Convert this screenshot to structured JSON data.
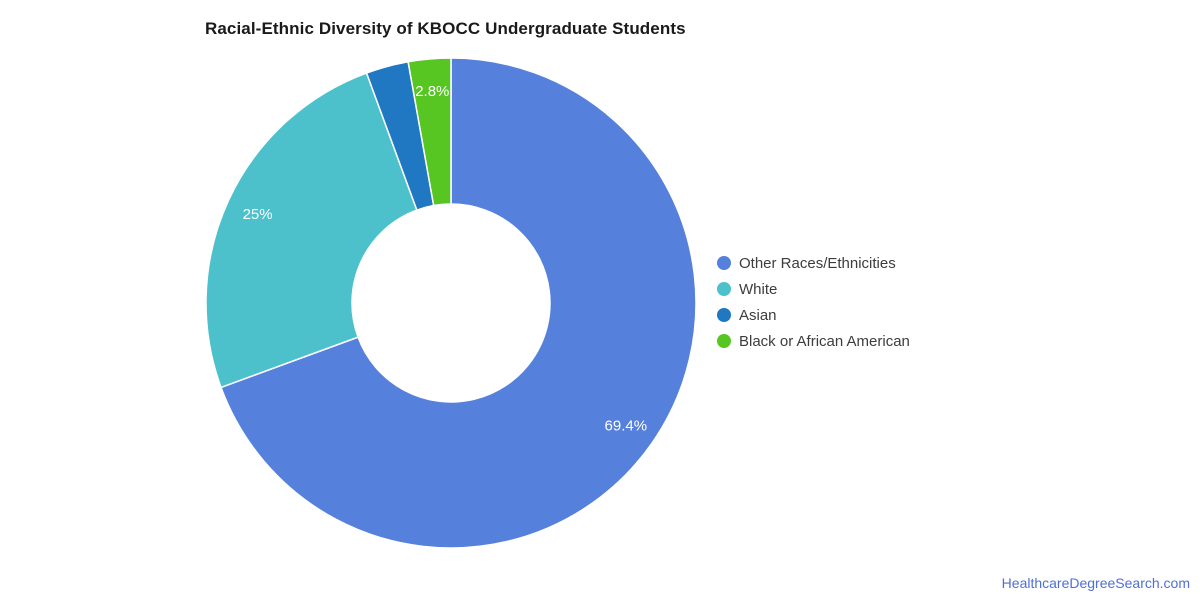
{
  "page": {
    "background": "#ffffff"
  },
  "chart_data": {
    "type": "pie",
    "subtype": "donut",
    "title": "Racial-Ethnic Diversity of KBOCC Undergraduate Students",
    "legend_position": "right",
    "hole_ratio": 0.404,
    "start_angle_deg": 0,
    "direction": "clockwise",
    "total": 100,
    "series": [
      {
        "label": "Other Races/Ethnicities",
        "value": 69.4,
        "display": "69.4%",
        "color": "#5581DD",
        "label_visible": true
      },
      {
        "label": "White",
        "value": 25.0,
        "display": "25%",
        "color": "#4DC1CB",
        "label_visible": true
      },
      {
        "label": "Asian",
        "value": 2.8,
        "display": "2.8%",
        "color": "#1F78C1",
        "label_visible": false
      },
      {
        "label": "Black or African American",
        "value": 2.8,
        "display": "2.8%",
        "color": "#57C522",
        "label_visible": true
      }
    ]
  },
  "footer": {
    "link_text": "HealthcareDegreeSearch.com",
    "color": "#4F6FD6"
  }
}
